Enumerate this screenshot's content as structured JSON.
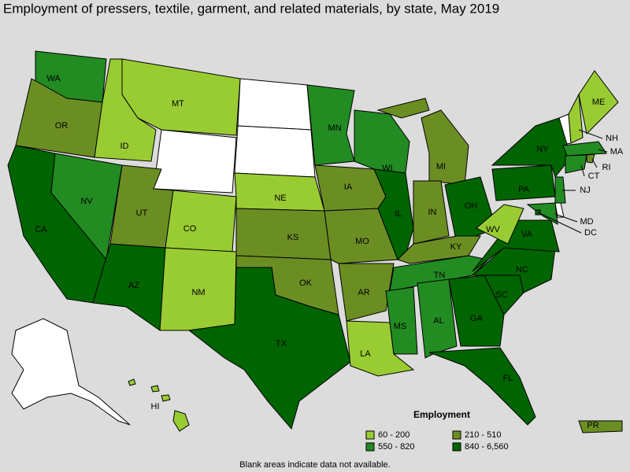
{
  "title": "Employment of pressers, textile, garment, and related materials, by state, May 2019",
  "states": [
    {
      "label": "WA",
      "bin": 2
    },
    {
      "label": "OR",
      "bin": 1
    },
    {
      "label": "CA",
      "bin": 3
    },
    {
      "label": "NV",
      "bin": 2
    },
    {
      "label": "ID",
      "bin": 0
    },
    {
      "label": "MT",
      "bin": 0
    },
    {
      "label": "UT",
      "bin": 1
    },
    {
      "label": "AZ",
      "bin": 3
    },
    {
      "label": "CO",
      "bin": 0
    },
    {
      "label": "NM",
      "bin": 0
    },
    {
      "label": "NE",
      "bin": 0
    },
    {
      "label": "KS",
      "bin": 1
    },
    {
      "label": "OK",
      "bin": 1
    },
    {
      "label": "TX",
      "bin": 3
    },
    {
      "label": "MN",
      "bin": 2
    },
    {
      "label": "IA",
      "bin": 1
    },
    {
      "label": "MO",
      "bin": 1
    },
    {
      "label": "AR",
      "bin": 1
    },
    {
      "label": "LA",
      "bin": 0
    },
    {
      "label": "WI",
      "bin": 2
    },
    {
      "label": "IL",
      "bin": 3
    },
    {
      "label": "MI",
      "bin": 1
    },
    {
      "label": "IN",
      "bin": 1
    },
    {
      "label": "OH",
      "bin": 3
    },
    {
      "label": "KY",
      "bin": 1
    },
    {
      "label": "TN",
      "bin": 2
    },
    {
      "label": "MS",
      "bin": 2
    },
    {
      "label": "AL",
      "bin": 2
    },
    {
      "label": "GA",
      "bin": 3
    },
    {
      "label": "FL",
      "bin": 3
    },
    {
      "label": "SC",
      "bin": 3
    },
    {
      "label": "NC",
      "bin": 3
    },
    {
      "label": "VA",
      "bin": 3
    },
    {
      "label": "WV",
      "bin": 0
    },
    {
      "label": "PA",
      "bin": 3
    },
    {
      "label": "NY",
      "bin": 3
    },
    {
      "label": "NH",
      "bin": 0
    },
    {
      "label": "ME",
      "bin": 0
    },
    {
      "label": "MA",
      "bin": 2
    },
    {
      "label": "RI",
      "bin": 1
    },
    {
      "label": "CT",
      "bin": 2
    },
    {
      "label": "NJ",
      "bin": 2
    },
    {
      "label": "MD",
      "bin": 2
    },
    {
      "label": "DC",
      "bin": 3
    },
    {
      "label": "HI",
      "bin": 0
    },
    {
      "label": "PR",
      "bin": 1
    }
  ],
  "legend": {
    "title": "Employment",
    "bins": [
      {
        "label": "60 - 200",
        "color": "#99cc33"
      },
      {
        "label": "210 - 510",
        "color": "#6b8e23"
      },
      {
        "label": "550 - 820",
        "color": "#228b22"
      },
      {
        "label": "840 - 6,560",
        "color": "#006400"
      }
    ]
  },
  "note": "Blank areas indicate data not available."
}
